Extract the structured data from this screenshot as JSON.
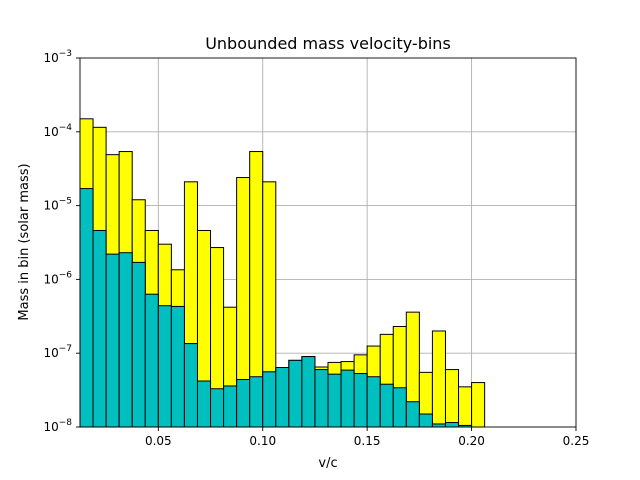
{
  "chart_data": {
    "type": "bar",
    "title": "Unbounded mass velocity-bins",
    "xlabel": "v/c",
    "ylabel": "Mass in bin (solar mass)",
    "xlim": [
      0.0125,
      0.25
    ],
    "ylim": [
      1e-08,
      0.001
    ],
    "y_scale": "log",
    "grid": true,
    "bin_width": 0.00625,
    "x_ticks": [
      {
        "value": 0.05,
        "label": "0.05"
      },
      {
        "value": 0.1,
        "label": "0.10"
      },
      {
        "value": 0.15,
        "label": "0.15"
      },
      {
        "value": 0.2,
        "label": "0.20"
      },
      {
        "value": 0.25,
        "label": "0.25"
      }
    ],
    "y_ticks": [
      {
        "value": 1e-08,
        "base": "10",
        "exp": "−8"
      },
      {
        "value": 1e-07,
        "base": "10",
        "exp": "−7"
      },
      {
        "value": 1e-06,
        "base": "10",
        "exp": "−6"
      },
      {
        "value": 1e-05,
        "base": "10",
        "exp": "−5"
      },
      {
        "value": 0.0001,
        "base": "10",
        "exp": "−4"
      },
      {
        "value": 0.001,
        "base": "10",
        "exp": "−3"
      }
    ],
    "series": [
      {
        "color": "#ffff00",
        "bin_starts": [
          0.0125,
          0.01875,
          0.025,
          0.03125,
          0.0375,
          0.04375,
          0.05,
          0.05625,
          0.0625,
          0.06875,
          0.075,
          0.08125,
          0.0875,
          0.09375,
          0.1,
          0.10625,
          0.1125,
          0.11875,
          0.125,
          0.13125,
          0.1375,
          0.14375,
          0.15,
          0.15625,
          0.1625,
          0.16875,
          0.175,
          0.18125,
          0.1875,
          0.19375,
          0.2,
          0.20625
        ],
        "values": [
          0.00015,
          0.000115,
          4.9e-05,
          5.4e-05,
          1.2e-05,
          4.6e-06,
          3e-06,
          1.35e-06,
          2.1e-05,
          4.6e-06,
          2.7e-06,
          4.2e-07,
          2.4e-05,
          5.4e-05,
          2.1e-05,
          6.2e-08,
          8e-08,
          9e-08,
          6.5e-08,
          7.5e-08,
          7.7e-08,
          9.5e-08,
          1.25e-07,
          1.8e-07,
          2.3e-07,
          3.6e-07,
          5.5e-08,
          2e-07,
          6e-08,
          3.5e-08,
          4e-08,
          1e-08
        ]
      },
      {
        "color": "#00bfbf",
        "bin_starts": [
          0.0125,
          0.01875,
          0.025,
          0.03125,
          0.0375,
          0.04375,
          0.05,
          0.05625,
          0.0625,
          0.06875,
          0.075,
          0.08125,
          0.0875,
          0.09375,
          0.1,
          0.10625,
          0.1125,
          0.11875,
          0.125,
          0.13125,
          0.1375,
          0.14375,
          0.15,
          0.15625,
          0.1625,
          0.16875,
          0.175,
          0.18125,
          0.1875,
          0.19375,
          0.2,
          0.20625
        ],
        "values": [
          1.7e-05,
          4.6e-06,
          2.2e-06,
          2.3e-06,
          1.7e-06,
          6.3e-07,
          4.4e-07,
          4.3e-07,
          1.35e-07,
          4.2e-08,
          3.3e-08,
          3.6e-08,
          4.4e-08,
          4.8e-08,
          5.6e-08,
          6.4e-08,
          8e-08,
          9e-08,
          6e-08,
          5.2e-08,
          5.9e-08,
          5.3e-08,
          4.8e-08,
          3.8e-08,
          3.4e-08,
          2.2e-08,
          1.5e-08,
          1.1e-08,
          1.15e-08,
          1.05e-08,
          1e-08,
          1e-08
        ]
      }
    ]
  }
}
